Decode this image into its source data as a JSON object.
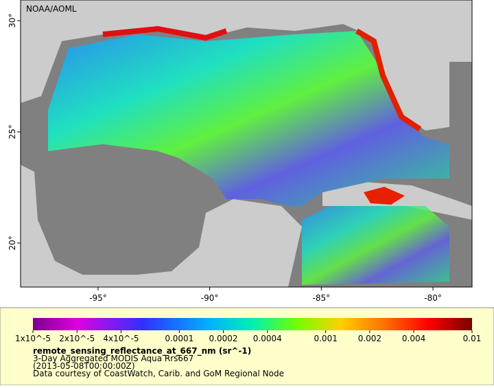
{
  "map": {
    "credit": "NOAA/AOML",
    "lonlim": [
      -98.47,
      -78.25
    ],
    "latlim": [
      18.02,
      30.93
    ],
    "lonticks": [
      {
        "value": -95,
        "label": "-95°"
      },
      {
        "value": -90,
        "label": "-90°"
      },
      {
        "value": -85,
        "label": "-85°"
      },
      {
        "value": -80,
        "label": "-80°"
      }
    ],
    "latticks": [
      {
        "value": 20,
        "label": "20°"
      },
      {
        "value": 25,
        "label": "25°"
      },
      {
        "value": 30,
        "label": "30°"
      }
    ]
  },
  "legend": {
    "scale": "log",
    "range": [
      1e-05,
      0.01
    ],
    "ticks": [
      {
        "value": 1e-05,
        "label": "1x10^-5"
      },
      {
        "value": 2e-05,
        "label": "2x10^-5"
      },
      {
        "value": 4e-05,
        "label": "4x10^-5"
      },
      0.0001,
      0.0002,
      0.0004,
      0.001,
      0.002,
      0.004,
      0.01
    ],
    "title": "remote_sensing_reflectance_at_667_nm (sr^-1)",
    "lines": [
      "3-Day Aggregated MODIS Aqua Rrs667",
      "(2013-05-08T00:00:00Z)",
      "Data courtesy of CoastWatch, Carib. and GoM Regional Node"
    ]
  }
}
